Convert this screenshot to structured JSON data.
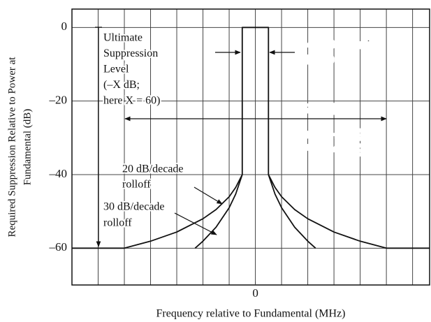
{
  "chart_data": {
    "type": "line",
    "y_label": [
      "Required Suppression Relative to Power at",
      "Fundamental (dB)"
    ],
    "x_label": "Frequency relative to Fundamental (MHz)",
    "xlim": [
      -7,
      6.65
    ],
    "ylim": [
      -70,
      5
    ],
    "xticks": [
      0
    ],
    "xgrid": [
      -6,
      -5,
      -4,
      -3,
      -2,
      -1,
      0,
      1,
      2,
      3,
      4,
      5,
      6
    ],
    "yticks": [
      0,
      {
        "value": -20,
        "label": "–20"
      },
      {
        "value": -40,
        "label": "–40"
      },
      {
        "value": -60,
        "label": "–60"
      }
    ],
    "grid": true,
    "series": [
      {
        "color": "#111",
        "x": [
          -7,
          -5,
          -4,
          -3,
          -2,
          -1.5,
          -1,
          -0.75,
          -0.5,
          -0.5,
          0.5,
          0.5,
          0.75,
          1,
          1.5,
          2,
          3,
          4,
          5,
          6.65
        ],
        "values": [
          -60,
          -60,
          -58.1,
          -55.6,
          -52,
          -49.5,
          -46,
          -43.5,
          -40,
          0,
          0,
          -40,
          -43.5,
          -46,
          -49.5,
          -52,
          -55.6,
          -58.1,
          -60,
          -60
        ]
      },
      {
        "color": "#111",
        "x": [
          -2.3,
          -2,
          -1.5,
          -1,
          -0.75,
          -0.5
        ],
        "values": [
          -60,
          -58.1,
          -54.3,
          -49,
          -45.3,
          -40
        ]
      },
      {
        "color": "#111",
        "x": [
          0.5,
          0.75,
          1,
          1.5,
          2,
          2.3
        ],
        "values": [
          -40,
          -45.3,
          -49,
          -54.3,
          -58.1,
          -60
        ]
      }
    ],
    "annotations": [
      {
        "lines": [
          "Ultimate",
          "Suppression",
          "Level",
          "(–X dB;",
          "here X = 60)"
        ]
      },
      {
        "lines": [
          "–40 dB bandwidth",
          "[B(–40 dB)]"
        ]
      },
      {
        "lines": [
          "[B(–X dB)]"
        ]
      },
      {
        "lines": [
          "(here, [B(–X dB)]",
          "= 10*[B(–40 dB)]"
        ]
      },
      {
        "lines": [
          "20 dB/decade",
          "rolloff"
        ]
      },
      {
        "lines": [
          "30 dB/decade",
          "rolloff"
        ]
      }
    ]
  }
}
